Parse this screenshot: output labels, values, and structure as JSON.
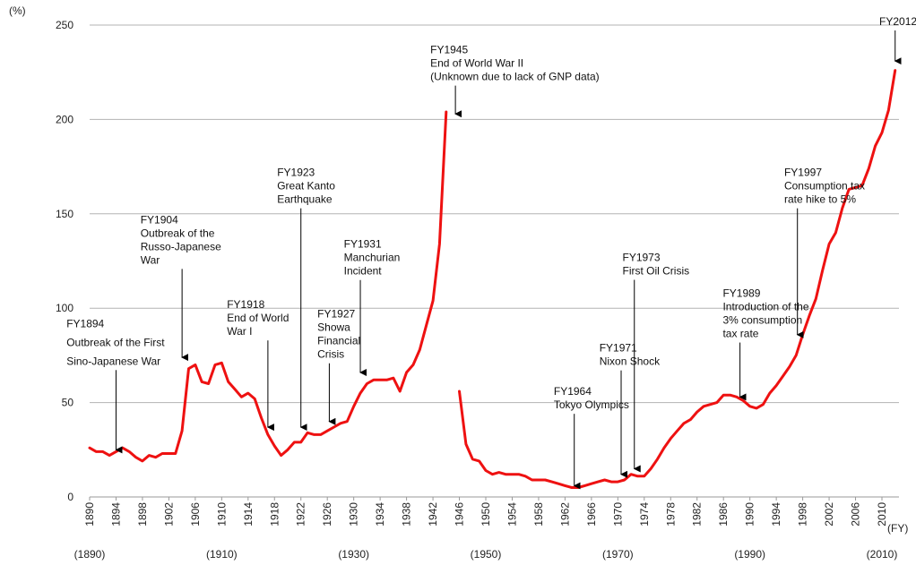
{
  "chart_data": {
    "type": "line",
    "y_unit": "(%)",
    "x_unit": "(FY)",
    "ylim": [
      0,
      250
    ],
    "yticks": [
      0,
      50,
      100,
      150,
      200,
      250
    ],
    "xlim": [
      1890,
      2013
    ],
    "xticks": [
      "1890",
      "1894",
      "1898",
      "1902",
      "1906",
      "1910",
      "1914",
      "1918",
      "1922",
      "1926",
      "1930",
      "1934",
      "1938",
      "1942",
      "1946",
      "1950",
      "1954",
      "1958",
      "1962",
      "1966",
      "1970",
      "1974",
      "1978",
      "1982",
      "1986",
      "1990",
      "1994",
      "1998",
      "2002",
      "2006",
      "2010"
    ],
    "calendar_labels": [
      {
        "year": 1890,
        "label": "(1890)"
      },
      {
        "year": 1910,
        "label": "(1910)"
      },
      {
        "year": 1930,
        "label": "(1930)"
      },
      {
        "year": 1950,
        "label": "(1950)"
      },
      {
        "year": 1970,
        "label": "(1970)"
      },
      {
        "year": 1990,
        "label": "(1990)"
      },
      {
        "year": 2010,
        "label": "(2010)"
      }
    ],
    "grid": true,
    "line_color": "#ee1111",
    "series": [
      {
        "segment": 1,
        "points": [
          [
            1890,
            26
          ],
          [
            1891,
            24
          ],
          [
            1892,
            24
          ],
          [
            1893,
            22
          ],
          [
            1894,
            24
          ],
          [
            1895,
            26
          ],
          [
            1896,
            24
          ],
          [
            1897,
            21
          ],
          [
            1898,
            19
          ],
          [
            1899,
            22
          ],
          [
            1900,
            21
          ],
          [
            1901,
            23
          ],
          [
            1902,
            23
          ],
          [
            1903,
            23
          ],
          [
            1904,
            35
          ],
          [
            1905,
            68
          ],
          [
            1906,
            70
          ],
          [
            1907,
            61
          ],
          [
            1908,
            60
          ],
          [
            1909,
            70
          ],
          [
            1910,
            71
          ],
          [
            1911,
            61
          ],
          [
            1912,
            57
          ],
          [
            1913,
            53
          ],
          [
            1914,
            55
          ],
          [
            1915,
            52
          ],
          [
            1916,
            42
          ],
          [
            1917,
            33
          ],
          [
            1918,
            27
          ],
          [
            1919,
            22
          ],
          [
            1920,
            25
          ],
          [
            1921,
            29
          ],
          [
            1922,
            29
          ],
          [
            1923,
            34
          ],
          [
            1924,
            33
          ],
          [
            1925,
            33
          ],
          [
            1926,
            35
          ],
          [
            1927,
            37
          ],
          [
            1928,
            39
          ],
          [
            1929,
            40
          ],
          [
            1930,
            48
          ],
          [
            1931,
            55
          ],
          [
            1932,
            60
          ],
          [
            1933,
            62
          ],
          [
            1934,
            62
          ],
          [
            1935,
            62
          ],
          [
            1936,
            63
          ],
          [
            1937,
            56
          ],
          [
            1938,
            66
          ],
          [
            1939,
            70
          ],
          [
            1940,
            78
          ],
          [
            1941,
            91
          ],
          [
            1942,
            104
          ],
          [
            1943,
            134
          ],
          [
            1944,
            204
          ]
        ]
      },
      {
        "segment": 2,
        "points": [
          [
            1946,
            56
          ],
          [
            1947,
            28
          ],
          [
            1948,
            20
          ],
          [
            1949,
            19
          ],
          [
            1950,
            14
          ],
          [
            1951,
            12
          ],
          [
            1952,
            13
          ],
          [
            1953,
            12
          ],
          [
            1954,
            12
          ],
          [
            1955,
            12
          ],
          [
            1956,
            11
          ],
          [
            1957,
            9
          ],
          [
            1958,
            9
          ],
          [
            1959,
            9
          ],
          [
            1960,
            8
          ],
          [
            1961,
            7
          ],
          [
            1962,
            6
          ],
          [
            1963,
            5
          ],
          [
            1964,
            5
          ],
          [
            1965,
            6
          ],
          [
            1966,
            7
          ],
          [
            1967,
            8
          ],
          [
            1968,
            9
          ],
          [
            1969,
            8
          ],
          [
            1970,
            8
          ],
          [
            1971,
            9
          ],
          [
            1972,
            12
          ],
          [
            1973,
            11
          ],
          [
            1974,
            11
          ],
          [
            1975,
            15
          ],
          [
            1976,
            20
          ],
          [
            1977,
            26
          ],
          [
            1978,
            31
          ],
          [
            1979,
            35
          ],
          [
            1980,
            39
          ],
          [
            1981,
            41
          ],
          [
            1982,
            45
          ],
          [
            1983,
            48
          ],
          [
            1984,
            49
          ],
          [
            1985,
            50
          ],
          [
            1986,
            54
          ],
          [
            1987,
            54
          ],
          [
            1988,
            53
          ],
          [
            1989,
            51
          ],
          [
            1990,
            48
          ],
          [
            1991,
            47
          ],
          [
            1992,
            49
          ],
          [
            1993,
            55
          ],
          [
            1994,
            59
          ],
          [
            1995,
            64
          ],
          [
            1996,
            69
          ],
          [
            1997,
            75
          ],
          [
            1998,
            86
          ],
          [
            1999,
            96
          ],
          [
            2000,
            105
          ],
          [
            2001,
            120
          ],
          [
            2002,
            134
          ],
          [
            2003,
            140
          ],
          [
            2004,
            153
          ],
          [
            2005,
            163
          ],
          [
            2006,
            164
          ],
          [
            2007,
            165
          ],
          [
            2008,
            174
          ],
          [
            2009,
            186
          ],
          [
            2010,
            193
          ],
          [
            2011,
            205
          ],
          [
            2012,
            226
          ]
        ]
      }
    ],
    "annotations": [
      {
        "lines": [
          "FY1894",
          "Outbreak of the First",
          "Sino-Japanese War"
        ],
        "target": [
          1894,
          24
        ],
        "label_year": 1886.5,
        "label_top_value": 90,
        "line_height": 21
      },
      {
        "lines": [
          "FY1904",
          "Outbreak of the",
          "Russo-Japanese",
          "War"
        ],
        "target": [
          1904,
          73
        ],
        "label_year": 1897.7,
        "label_top_value": 145,
        "line_height": 15
      },
      {
        "lines": [
          "FY1918",
          "End of World",
          "War I"
        ],
        "target": [
          1917,
          36
        ],
        "label_year": 1910.8,
        "label_top_value": 100,
        "line_height": 15
      },
      {
        "lines": [
          "FY1923",
          "Great Kanto",
          "Earthquake"
        ],
        "target": [
          1922,
          36
        ],
        "label_year": 1918.4,
        "label_top_value": 170,
        "line_height": 15
      },
      {
        "lines": [
          "FY1927",
          "Showa",
          "Financial",
          "Crisis"
        ],
        "target": [
          1926.3,
          39
        ],
        "label_year": 1924.5,
        "label_top_value": 95,
        "line_height": 15
      },
      {
        "lines": [
          "FY1931",
          "Manchurian",
          "Incident"
        ],
        "target": [
          1931,
          65
        ],
        "label_year": 1928.5,
        "label_top_value": 132,
        "line_height": 15
      },
      {
        "lines": [
          "FY1945",
          "End of World War II",
          "(Unknown due to lack of GNP data)"
        ],
        "target": [
          1945.4,
          202
        ],
        "label_year": 1941.6,
        "label_top_value": 235,
        "line_height": 15
      },
      {
        "lines": [
          "FY1964",
          "Tokyo Olympics"
        ],
        "target": [
          1963.4,
          5
        ],
        "label_year": 1960.3,
        "label_top_value": 54,
        "line_height": 15
      },
      {
        "lines": [
          "FY1971",
          "Nixon Shock"
        ],
        "target": [
          1970.5,
          11
        ],
        "label_year": 1967.2,
        "label_top_value": 77,
        "line_height": 15
      },
      {
        "lines": [
          "FY1973",
          "First Oil Crisis"
        ],
        "target": [
          1972.5,
          14
        ],
        "label_year": 1970.7,
        "label_top_value": 125,
        "line_height": 15
      },
      {
        "lines": [
          "FY1989",
          "Introduction of the",
          "3% consumption",
          "tax rate"
        ],
        "target": [
          1988.5,
          52
        ],
        "label_year": 1985.9,
        "label_top_value": 106,
        "line_height": 15
      },
      {
        "lines": [
          "FY1997",
          "Consumption tax",
          "rate hike to 5%"
        ],
        "target": [
          1997.2,
          85
        ],
        "label_year": 1995.2,
        "label_top_value": 170,
        "line_height": 15
      },
      {
        "lines": [
          "FY2012"
        ],
        "target": [
          2012,
          230
        ],
        "label_year": 2009.6,
        "label_top_value": 250,
        "line_height": 15
      }
    ]
  }
}
